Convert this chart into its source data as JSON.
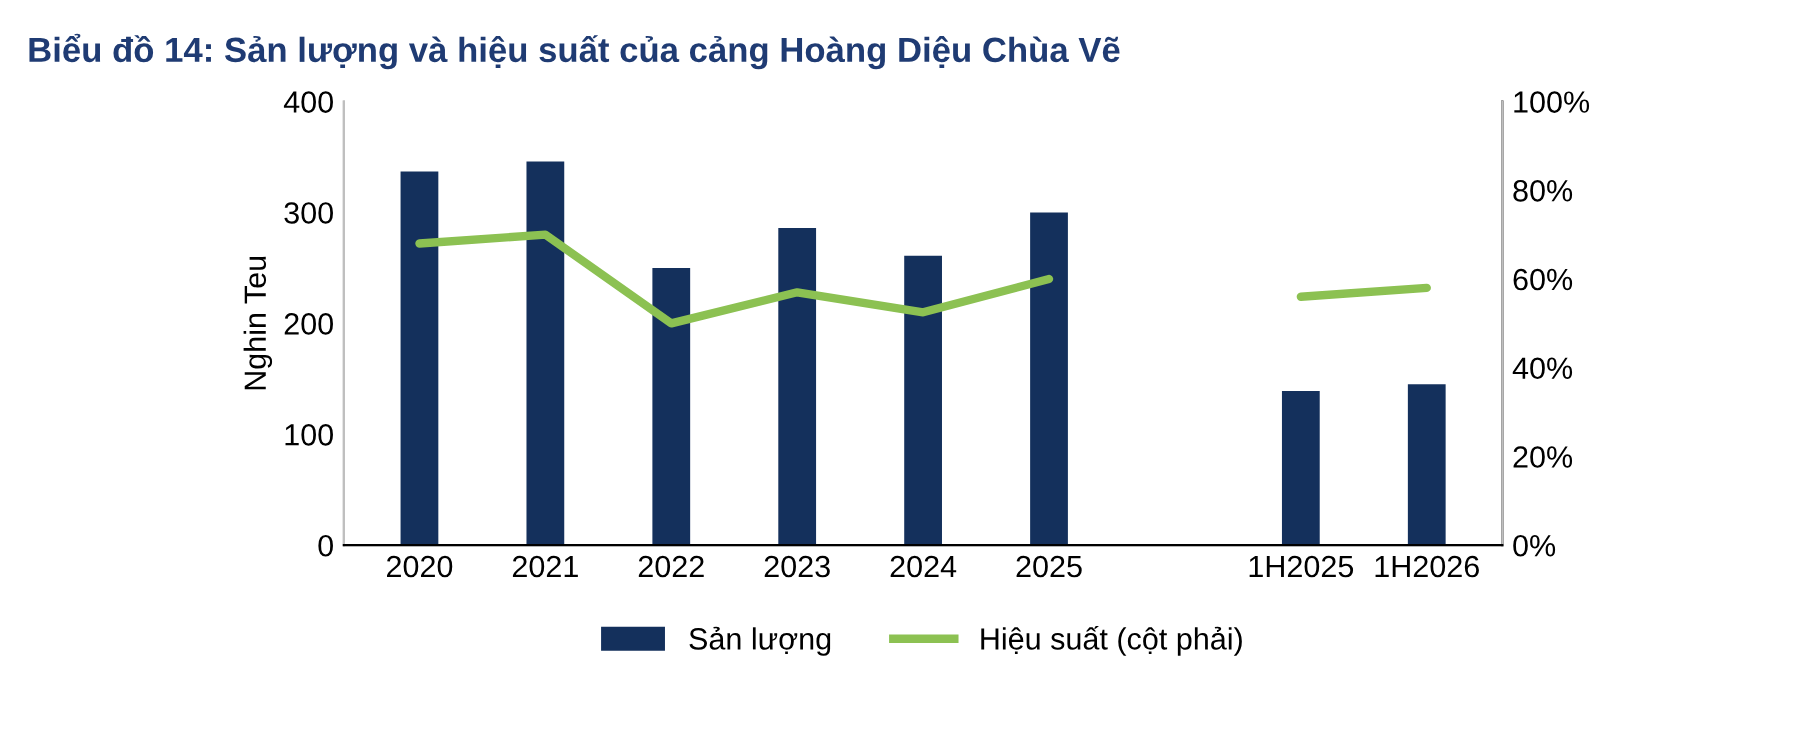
{
  "chart_data": {
    "type": "bar",
    "title": "Biểu đồ 14: Sản lượng và hiệu suất của cảng Hoàng Diệu Chùa Vẽ",
    "categories": [
      "2020",
      "2021",
      "2022",
      "2023",
      "2024",
      "2025",
      null,
      "1H2025",
      "1H2026"
    ],
    "series": [
      {
        "name": "Sản lượng",
        "color": "#14305c",
        "values": [
          337,
          346,
          250,
          286,
          261,
          300,
          null,
          139,
          145
        ]
      },
      {
        "name": "Hiệu suất (cột phải)",
        "type": "line",
        "axis": "y2",
        "color": "#8cc152",
        "values": [
          68,
          70,
          50,
          57,
          52.5,
          60,
          null,
          56,
          58
        ]
      }
    ],
    "ylabel": "Nghin Teu",
    "ylim": [
      0,
      400
    ],
    "yticks": [
      0,
      100,
      200,
      300,
      400
    ],
    "y2lim": [
      0,
      100
    ],
    "y2ticks": [
      {
        "value": 0,
        "label": "0%"
      },
      {
        "value": 20,
        "label": "20%"
      },
      {
        "value": 40,
        "label": "40%"
      },
      {
        "value": 60,
        "label": "60%"
      },
      {
        "value": 80,
        "label": "80%"
      },
      {
        "value": 100,
        "label": "100%"
      }
    ],
    "legend": "bottom",
    "grid": false
  }
}
